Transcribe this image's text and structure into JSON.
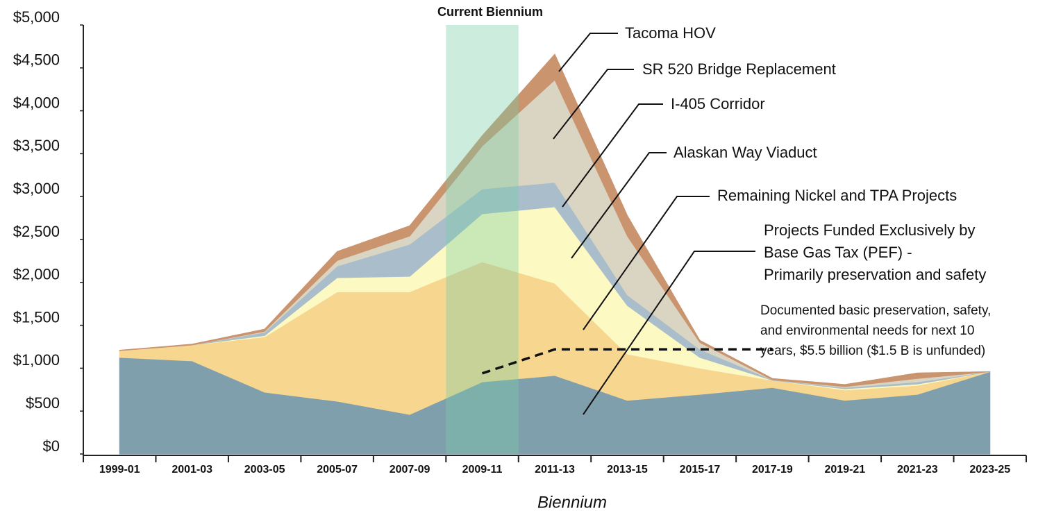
{
  "chart_data": {
    "type": "stacked_area",
    "title": "Current Biennium",
    "highlight_category": "2009-11",
    "x_label": "Biennium",
    "categories": [
      "1999-01",
      "2001-03",
      "2003-05",
      "2005-07",
      "2007-09",
      "2009-11",
      "2011-13",
      "2013-15",
      "2015-17",
      "2017-19",
      "2019-21",
      "2021-23",
      "2023-25"
    ],
    "series": [
      {
        "name": "Projects Funded Exclusively by Base Gas Tax (PEF) - Primarily preservation and safety",
        "color": "#809fad",
        "values": [
          1125,
          1085,
          720,
          615,
          460,
          840,
          915,
          625,
          695,
          775,
          625,
          695,
          960
        ]
      },
      {
        "name": "Remaining Nickel and TPA Projects",
        "color": "#f7d690",
        "values": [
          80,
          185,
          645,
          1275,
          1430,
          1400,
          1075,
          540,
          305,
          85,
          120,
          105,
          0
        ]
      },
      {
        "name": "Alaskan Way Viaduct",
        "color": "#fdf9c2",
        "values": [
          0,
          0,
          15,
          165,
          180,
          560,
          890,
          565,
          125,
          0,
          15,
          15,
          0
        ]
      },
      {
        "name": "I-405 Corridor",
        "color": "#aabdcb",
        "values": [
          0,
          0,
          40,
          135,
          375,
          290,
          285,
          125,
          95,
          5,
          15,
          25,
          0
        ]
      },
      {
        "name": "SR 520 Bridge Replacement",
        "color": "#dad5c2",
        "values": [
          0,
          0,
          10,
          65,
          95,
          500,
          1195,
          685,
          80,
          0,
          10,
          40,
          0
        ]
      },
      {
        "name": "Tacoma HOV",
        "color": "#c9946e",
        "values": [
          5,
          10,
          25,
          105,
          120,
          120,
          300,
          240,
          25,
          15,
          25,
          65,
          0
        ]
      }
    ],
    "note": "Documented basic preservation, safety, and environmental needs for next 10 years, $5.5 billion ($1.5 B is unfunded)",
    "note_values": [
      null,
      null,
      null,
      null,
      null,
      940,
      1220,
      1220,
      1220,
      1220,
      null,
      null,
      null
    ],
    "ylim": [
      0,
      5000
    ],
    "yticks": [
      {
        "value": 0,
        "label": "$0"
      },
      {
        "value": 500,
        "label": "$500"
      },
      {
        "value": 1000,
        "label": "$1,000"
      },
      {
        "value": 1500,
        "label": "$1,500"
      },
      {
        "value": 2000,
        "label": "$2,000"
      },
      {
        "value": 2500,
        "label": "$2,500"
      },
      {
        "value": 3000,
        "label": "$3,000"
      },
      {
        "value": 3500,
        "label": "$3,500"
      },
      {
        "value": 4000,
        "label": "$4,000"
      },
      {
        "value": 4500,
        "label": "$4,500"
      },
      {
        "value": 5000,
        "label": "$5,000"
      }
    ]
  }
}
